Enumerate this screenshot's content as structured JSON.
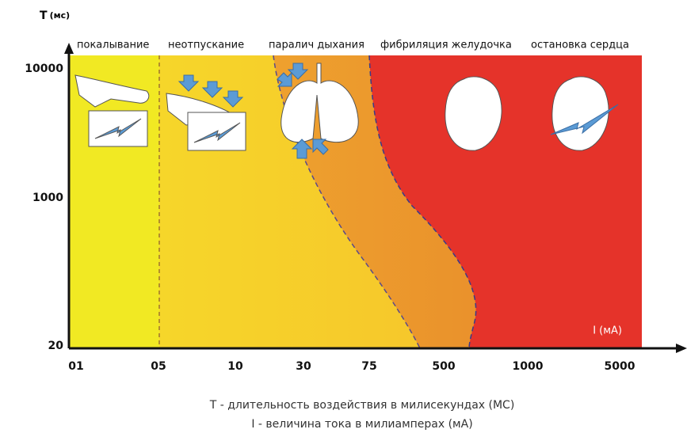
{
  "y_axis": {
    "symbol": "T",
    "unit": "(мс)",
    "labels": [
      "10000",
      "1000",
      "20"
    ]
  },
  "x_axis": {
    "labels": [
      "01",
      "05",
      "10",
      "30",
      "75",
      "500",
      "1000",
      "5000"
    ],
    "unit_label": "I (мА)"
  },
  "zones": [
    "покалывание",
    "неотпускание",
    "паралич дыхания",
    "фибриляция желудочка",
    "остановка сердца"
  ],
  "captions": [
    "T - длительность воздействия в милисекундах (МС)",
    "I - величина тока в милиамперах (мА)"
  ]
}
